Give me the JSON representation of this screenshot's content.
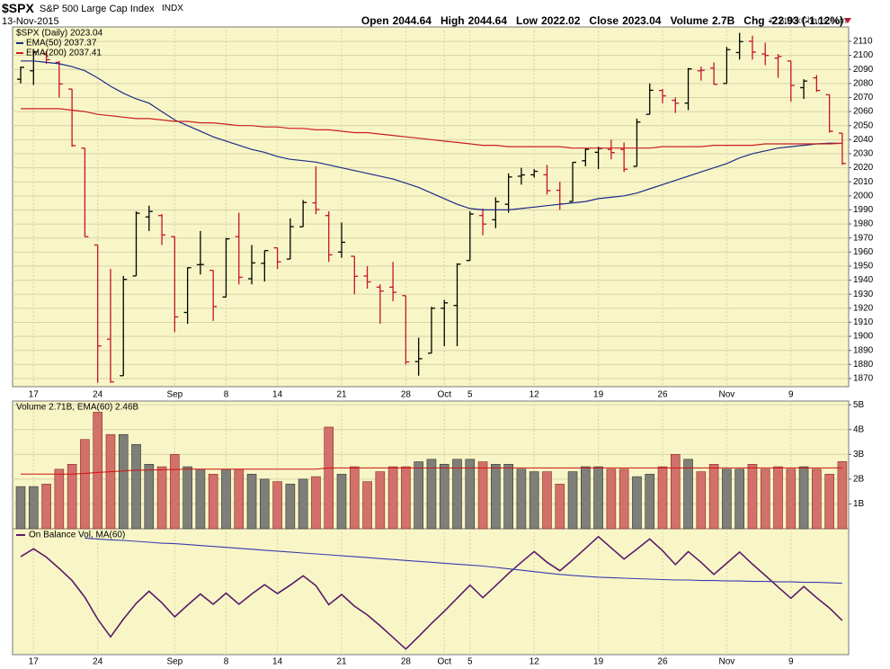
{
  "header": {
    "symbol": "$SPX",
    "name": "S&P 500 Large Cap Index",
    "exchange": "INDX",
    "date": "13-Nov-2015",
    "credit": "© StockCharts.com",
    "stats": [
      {
        "label": "Open",
        "value": "2044.64"
      },
      {
        "label": "High",
        "value": "2044.64"
      },
      {
        "label": "Low",
        "value": "2022.02"
      },
      {
        "label": "Close",
        "value": "2023.04"
      },
      {
        "label": "Volume",
        "value": "2.7B"
      },
      {
        "label": "Chg",
        "value": "-22.93 (-1.12%)"
      }
    ]
  },
  "chart_data": [
    {
      "type": "ohlc",
      "legend": "$SPX (Daily) 2023.04",
      "categories": [
        null,
        "17",
        null,
        null,
        null,
        null,
        "24",
        null,
        null,
        null,
        null,
        null,
        "Sep",
        null,
        null,
        null,
        "8",
        null,
        null,
        null,
        "14",
        null,
        null,
        null,
        null,
        "21",
        null,
        null,
        null,
        null,
        "28",
        null,
        null,
        "Oct",
        null,
        "5",
        null,
        null,
        null,
        null,
        "12",
        null,
        null,
        null,
        null,
        "19",
        null,
        null,
        null,
        null,
        "26",
        null,
        null,
        null,
        null,
        "Nov",
        null,
        null,
        null,
        null,
        "9",
        null,
        null,
        null,
        null
      ],
      "open": [
        2083,
        2089,
        2101,
        2095,
        2076,
        2034,
        1965,
        1898,
        1872,
        1943,
        1985,
        1986,
        1971,
        1917,
        1951,
        1947,
        1928,
        1971,
        1941,
        1952,
        1963,
        1955,
        1978,
        1995,
        1986,
        1960,
        1957,
        1943,
        1935,
        1935,
        1929,
        1882,
        1888,
        1920,
        1922,
        1954,
        1986,
        1983,
        1994,
        2014,
        2015,
        2015,
        2004,
        1996,
        2025,
        2031,
        2033,
        2033,
        2021,
        2058,
        2075,
        2068,
        2066,
        2089,
        2091,
        2080,
        2102,
        2110,
        2101,
        2098,
        2096,
        2077,
        2084,
        2072,
        2044.64
      ],
      "high": [
        2092,
        2103,
        2103,
        2096,
        2076,
        2034,
        1965,
        1948,
        1943,
        1989,
        1993,
        1987,
        1971,
        1949,
        1975,
        1947,
        1970,
        1988,
        1965,
        1961,
        1963,
        1984,
        1997,
        2021,
        1989,
        1981,
        1957,
        1950,
        1937,
        1953,
        1929,
        1899,
        1921,
        1926,
        1952,
        1989,
        1991,
        1999,
        2016,
        2020,
        2019,
        2022,
        2010,
        2024,
        2034,
        2035,
        2040,
        2038,
        2055,
        2080,
        2076,
        2070,
        2091,
        2092,
        2095,
        2106,
        2116,
        2114,
        2109,
        2101,
        2096,
        2083,
        2086,
        2072,
        2044.64
      ],
      "low": [
        2080,
        2079,
        2094,
        2070,
        2035,
        1971,
        1867,
        1867,
        1872,
        1943,
        1975,
        1965,
        1903,
        1909,
        1944,
        1911,
        1928,
        1937,
        1937,
        1939,
        1948,
        1955,
        1978,
        1987,
        1953,
        1956,
        1930,
        1934,
        1909,
        1925,
        1880,
        1872,
        1888,
        1893,
        1893,
        1954,
        1972,
        1977,
        1988,
        2008,
        2013,
        2001,
        1990,
        1996,
        2021,
        2019,
        2026,
        2017,
        2021,
        2058,
        2066,
        2059,
        2061,
        2082,
        2079,
        2080,
        2097,
        2097,
        2093,
        2084,
        2067,
        2069,
        2074,
        2045,
        2022.02
      ],
      "close": [
        2091.54,
        2102.44,
        2096.92,
        2079.61,
        2035.73,
        1970.89,
        1893.21,
        1867.61,
        1940.51,
        1987.66,
        1988.87,
        1972.18,
        1913.85,
        1948.86,
        1951.13,
        1921.22,
        1969.41,
        1942.04,
        1952.29,
        1961.05,
        1953.03,
        1978.09,
        1995.31,
        1990.2,
        1958.03,
        1966.97,
        1942.74,
        1938.76,
        1932.24,
        1931.34,
        1881.77,
        1884.09,
        1920.03,
        1923.82,
        1951.36,
        1987.05,
        1979.92,
        1995.83,
        2013.43,
        2014.89,
        2017.46,
        2003.69,
        1994.24,
        2023.86,
        2033.11,
        2033.66,
        2030.77,
        2018.94,
        2052.51,
        2075.15,
        2071.18,
        2065.89,
        2090.35,
        2089.41,
        2079.36,
        2104.05,
        2109.79,
        2102.31,
        2099.93,
        2099.2,
        2078.58,
        2081.72,
        2075,
        2045.97,
        2023.04
      ],
      "up_color": "#000000",
      "down_color": "#c8102e",
      "series": [
        {
          "name": "EMA(50) 2037.37",
          "color": "#1f2a8a",
          "values": [
            2096,
            2096,
            2095,
            2094,
            2092,
            2089,
            2084,
            2078,
            2073,
            2069,
            2066,
            2060,
            2054,
            2050,
            2046,
            2042,
            2039,
            2036,
            2033,
            2031,
            2028,
            2026,
            2025,
            2024,
            2022,
            2020,
            2018,
            2016,
            2014,
            2012,
            2009,
            2006,
            2002,
            1998,
            1994,
            1991,
            1990,
            1990,
            1990,
            1991,
            1992,
            1993,
            1994,
            1995,
            1996,
            1998,
            1999,
            2000,
            2002,
            2005,
            2008,
            2011,
            2014,
            2017,
            2020,
            2023,
            2027,
            2030,
            2032,
            2034,
            2035,
            2036,
            2037,
            2037.5,
            2037.37
          ]
        },
        {
          "name": "EMA(200) 2037.41",
          "color": "#cc1f1f",
          "values": [
            2062,
            2062,
            2062,
            2062,
            2061,
            2060,
            2058,
            2057,
            2056,
            2055,
            2055,
            2054,
            2053,
            2053,
            2052,
            2052,
            2051,
            2050,
            2050,
            2049,
            2049,
            2048,
            2048,
            2047,
            2047,
            2046,
            2045,
            2045,
            2044,
            2043,
            2042,
            2041,
            2040,
            2039,
            2038,
            2037,
            2036,
            2036,
            2035,
            2035,
            2035,
            2035,
            2035,
            2034,
            2034,
            2034,
            2034,
            2034,
            2034,
            2034,
            2035,
            2035,
            2035,
            2035,
            2036,
            2036,
            2036,
            2036,
            2037,
            2037,
            2037,
            2037,
            2037,
            2037,
            2037.41
          ]
        }
      ],
      "ylim": [
        1864.2,
        2120.2
      ],
      "yticks": [
        1870,
        1880,
        1890,
        1900,
        1910,
        1920,
        1930,
        1940,
        1950,
        1960,
        1970,
        1980,
        1990,
        2000,
        2010,
        2020,
        2030,
        2040,
        2050,
        2060,
        2070,
        2080,
        2090,
        2100,
        2110
      ],
      "grid": true
    },
    {
      "type": "bar",
      "legend": "Volume 2.71B, EMA(60) 2.46B",
      "values": [
        1.7,
        1.7,
        1.8,
        2.4,
        2.6,
        3.6,
        4.7,
        3.8,
        3.8,
        3.4,
        2.6,
        2.5,
        3.0,
        2.5,
        2.4,
        2.2,
        2.4,
        2.4,
        2.2,
        2.0,
        1.9,
        1.8,
        2.0,
        2.1,
        4.1,
        2.2,
        2.5,
        1.9,
        2.3,
        2.5,
        2.5,
        2.7,
        2.8,
        2.6,
        2.8,
        2.8,
        2.7,
        2.6,
        2.6,
        2.4,
        2.3,
        2.3,
        1.8,
        2.3,
        2.5,
        2.5,
        2.4,
        2.4,
        2.1,
        2.2,
        2.5,
        3.0,
        2.8,
        2.3,
        2.6,
        2.4,
        2.4,
        2.6,
        2.4,
        2.5,
        2.4,
        2.5,
        2.4,
        2.2,
        2.71
      ],
      "up_color": "#7f7f7a",
      "down_color": "#d2706b",
      "series": [
        {
          "color": "#d01010",
          "values": [
            2.2,
            2.2,
            2.2,
            2.2,
            2.2,
            2.23,
            2.27,
            2.3,
            2.33,
            2.36,
            2.37,
            2.38,
            2.39,
            2.4,
            2.4,
            2.4,
            2.4,
            2.4,
            2.4,
            2.4,
            2.4,
            2.4,
            2.4,
            2.4,
            2.45,
            2.45,
            2.45,
            2.45,
            2.45,
            2.45,
            2.45,
            2.45,
            2.45,
            2.45,
            2.45,
            2.45,
            2.45,
            2.45,
            2.45,
            2.45,
            2.45,
            2.45,
            2.45,
            2.45,
            2.45,
            2.45,
            2.45,
            2.45,
            2.45,
            2.45,
            2.45,
            2.45,
            2.45,
            2.45,
            2.45,
            2.45,
            2.45,
            2.45,
            2.45,
            2.45,
            2.45,
            2.45,
            2.45,
            2.45,
            2.46
          ]
        }
      ],
      "ylim": [
        0,
        5.15
      ],
      "yticks": [
        {
          "value": 1,
          "label": "1B"
        },
        {
          "value": 2,
          "label": "2B"
        },
        {
          "value": 3,
          "label": "3B"
        },
        {
          "value": 4,
          "label": "4B"
        },
        {
          "value": 5,
          "label": "5B"
        }
      ],
      "grid": true
    },
    {
      "type": "line",
      "legend": "On Balance Vol, MA(60)",
      "series": [
        {
          "color": "#5a1a6a",
          "values": [
            0,
            1.7,
            -0.1,
            -2.5,
            -5.1,
            -8.7,
            -13.4,
            -17.2,
            -13.4,
            -10,
            -7.4,
            -9.9,
            -12.9,
            -10.4,
            -8,
            -10.2,
            -7.8,
            -10.2,
            -8,
            -6,
            -7.9,
            -6.1,
            -4.1,
            -6.2,
            -10.3,
            -8.1,
            -10.6,
            -12.5,
            -14.8,
            -17.3,
            -19.8,
            -17.1,
            -14.3,
            -11.7,
            -8.9,
            -6.1,
            -8.8,
            -6.2,
            -3.6,
            -1.2,
            1.1,
            -1.2,
            -3,
            -0.7,
            1.8,
            4.3,
            1.9,
            -0.5,
            1.6,
            3.8,
            1.3,
            -1.7,
            1.1,
            -1.2,
            -3.8,
            -1.4,
            1,
            -1.6,
            -4,
            -6.5,
            -8.9,
            -6.4,
            -8.8,
            -11,
            -13.7
          ]
        },
        {
          "color": "#3a3ab0",
          "values": [
            null,
            null,
            null,
            null,
            null,
            4.0,
            3.8,
            3.6,
            3.5,
            3.3,
            3.1,
            2.9,
            2.8,
            2.6,
            2.4,
            2.2,
            2.0,
            1.8,
            1.6,
            1.4,
            1.2,
            1.0,
            0.8,
            0.6,
            0.4,
            0.2,
            0,
            -0.2,
            -0.4,
            -0.6,
            -0.8,
            -1.0,
            -1.2,
            -1.4,
            -1.6,
            -1.8,
            -2.0,
            -2.3,
            -2.6,
            -2.9,
            -3.2,
            -3.5,
            -3.8,
            -4.0,
            -4.2,
            -4.4,
            -4.5,
            -4.6,
            -4.7,
            -4.8,
            -4.9,
            -5.0,
            -5.0,
            -5.1,
            -5.1,
            -5.2,
            -5.2,
            -5.3,
            -5.3,
            -5.4,
            -5.4,
            -5.5,
            -5.5,
            -5.6,
            -5.7
          ]
        }
      ],
      "ylim": [
        -21,
        6
      ],
      "grid": true
    }
  ]
}
